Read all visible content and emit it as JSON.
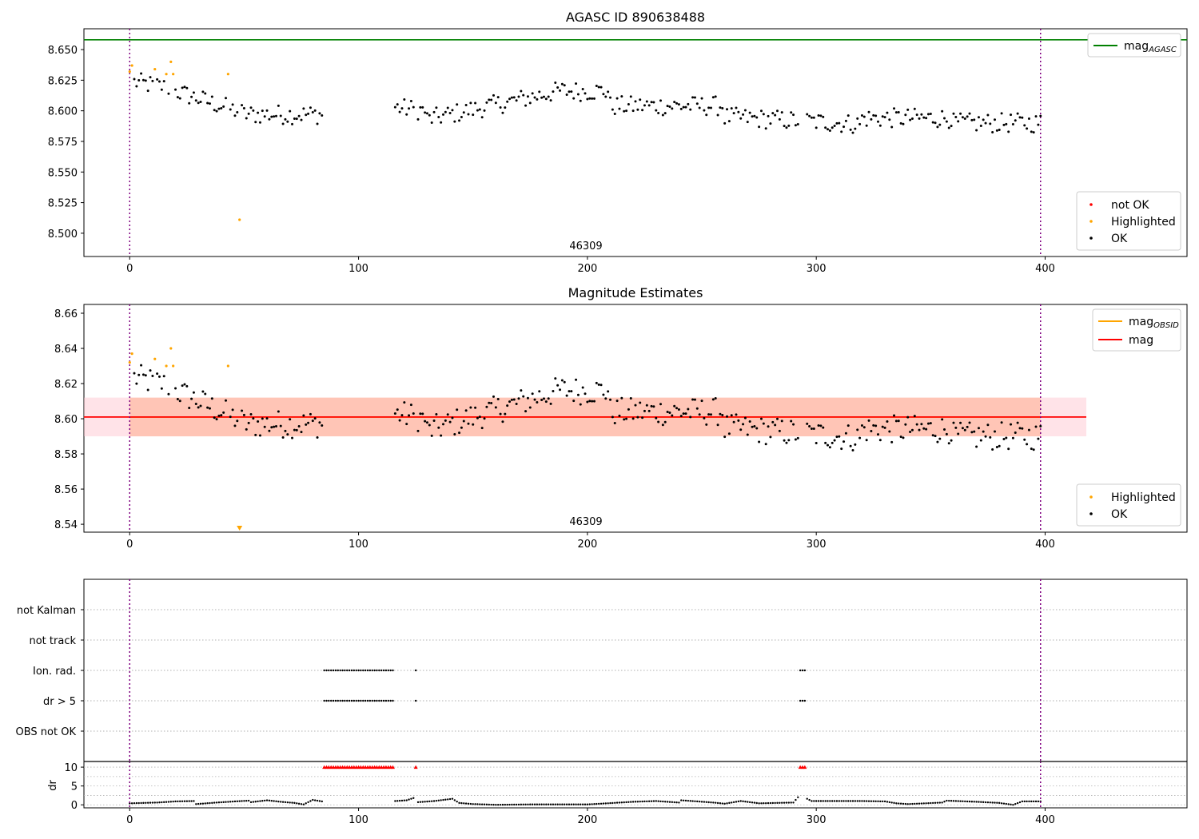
{
  "chart_data": [
    {
      "type": "scatter",
      "title": "AGASC ID 890638488",
      "annotation": "46309",
      "xlim": [
        -20,
        462
      ],
      "ylim": [
        8.481,
        8.667
      ],
      "xticks": [
        "0",
        "100",
        "200",
        "300",
        "400"
      ],
      "yticks": [
        "8.500",
        "8.525",
        "8.550",
        "8.575",
        "8.600",
        "8.625",
        "8.650"
      ],
      "vlines": [
        0,
        398
      ],
      "hlines": [
        {
          "name": "magAGASC",
          "y": 8.658,
          "color": "#008000"
        }
      ],
      "legend_lines": [
        {
          "name": "mag",
          "sub": "AGASC",
          "color": "#008000"
        }
      ],
      "legend_points": [
        {
          "name": "not OK",
          "color": "#ff0000"
        },
        {
          "name": "Highlighted",
          "color": "#ffa500"
        },
        {
          "name": "OK",
          "color": "#000000"
        }
      ],
      "highlighted_points": [
        [
          0,
          8.632
        ],
        [
          1,
          8.637
        ],
        [
          11,
          8.634
        ],
        [
          16,
          8.63
        ],
        [
          18,
          8.64
        ],
        [
          19,
          8.63
        ],
        [
          43,
          8.63
        ],
        [
          48,
          8.511
        ]
      ],
      "ok_series": "mag"
    },
    {
      "type": "scatter",
      "title": "Magnitude Estimates",
      "annotation": "46309",
      "xlim": [
        -20,
        462
      ],
      "ylim": [
        8.5355,
        8.665
      ],
      "xticks": [
        "0",
        "100",
        "200",
        "300",
        "400"
      ],
      "yticks": [
        "8.54",
        "8.56",
        "8.58",
        "8.60",
        "8.62",
        "8.64",
        "8.66"
      ],
      "vlines": [
        0,
        398
      ],
      "hlines": [
        {
          "name": "magOBSID",
          "y": 8.601,
          "color": "#ffa500",
          "band": [
            8.59,
            8.612
          ],
          "band_color": "#ffa07a",
          "xrange": [
            0,
            398
          ]
        },
        {
          "name": "mag",
          "y": 8.601,
          "color": "#ff0000",
          "band": [
            8.59,
            8.612
          ],
          "band_color": "#ffc0cb",
          "xrange": [
            -20,
            418
          ]
        }
      ],
      "legend_lines": [
        {
          "name": "mag",
          "sub": "OBSID",
          "color": "#ffa500"
        },
        {
          "name": "mag",
          "sub": "",
          "color": "#ff0000"
        }
      ],
      "legend_points": [
        {
          "name": "Highlighted",
          "color": "#ffa500"
        },
        {
          "name": "OK",
          "color": "#000000"
        }
      ],
      "highlighted_points": [
        [
          0,
          8.632
        ],
        [
          1,
          8.637
        ],
        [
          11,
          8.634
        ],
        [
          16,
          8.63
        ],
        [
          18,
          8.64
        ],
        [
          19,
          8.63
        ],
        [
          43,
          8.63
        ]
      ],
      "offscale_marker": {
        "x": 48,
        "color": "#ffa500"
      },
      "ok_series": "mag"
    },
    {
      "type": "scatter",
      "title": "",
      "xlim": [
        -20,
        462
      ],
      "categories": [
        "not Kalman",
        "not track",
        "Ion. rad.",
        "dr > 5",
        "OBS not OK"
      ],
      "vlines": [
        0,
        398
      ],
      "flag_ranges": {
        "Ion. rad.": [
          [
            85,
            115
          ],
          [
            125,
            125
          ],
          [
            293,
            295
          ]
        ],
        "dr > 5": [
          [
            85,
            115
          ],
          [
            125,
            125
          ],
          [
            293,
            295
          ]
        ]
      }
    },
    {
      "type": "scatter",
      "title": "",
      "ylabel": "dr",
      "xlim": [
        -20,
        462
      ],
      "ylim": [
        -0.8,
        11.5
      ],
      "xticks": [
        "0",
        "100",
        "200",
        "300",
        "400"
      ],
      "yticks": [
        "0",
        "5",
        "10"
      ],
      "vlines": [
        0,
        398
      ],
      "clipped_value": 10,
      "clipped_ranges": [
        [
          85,
          115
        ],
        [
          125,
          125
        ],
        [
          293,
          295
        ]
      ],
      "dr_segments": [
        [
          0,
          0.4
        ],
        [
          12,
          0.6
        ],
        [
          20,
          0.9
        ],
        [
          28,
          1.0
        ],
        [
          29,
          0.2
        ],
        [
          38,
          0.6
        ],
        [
          46,
          0.9
        ],
        [
          52,
          1.1
        ],
        [
          53,
          0.7
        ],
        [
          60,
          1.2
        ],
        [
          66,
          0.8
        ],
        [
          72,
          0.5
        ],
        [
          76,
          0.1
        ],
        [
          80,
          1.3
        ],
        [
          84,
          0.9
        ],
        [
          116,
          1.0
        ],
        [
          121,
          1.2
        ],
        [
          124,
          1.8
        ],
        [
          126,
          0.7
        ],
        [
          133,
          1.0
        ],
        [
          141,
          1.6
        ],
        [
          144,
          0.5
        ],
        [
          150,
          0.2
        ],
        [
          160,
          0.0
        ],
        [
          175,
          0.1
        ],
        [
          200,
          0.1
        ],
        [
          220,
          0.8
        ],
        [
          230,
          1.0
        ],
        [
          240,
          0.6
        ],
        [
          241,
          1.2
        ],
        [
          255,
          0.6
        ],
        [
          260,
          0.3
        ],
        [
          267,
          1.0
        ],
        [
          275,
          0.4
        ],
        [
          290,
          0.6
        ],
        [
          292,
          2.0
        ],
        [
          296,
          1.6
        ],
        [
          298,
          1.0
        ],
        [
          320,
          1.0
        ],
        [
          330,
          0.9
        ],
        [
          335,
          0.4
        ],
        [
          340,
          0.2
        ],
        [
          355,
          0.6
        ],
        [
          357,
          1.1
        ],
        [
          370,
          0.8
        ],
        [
          380,
          0.5
        ],
        [
          386,
          0.0
        ],
        [
          390,
          0.9
        ],
        [
          398,
          0.9
        ]
      ]
    }
  ]
}
